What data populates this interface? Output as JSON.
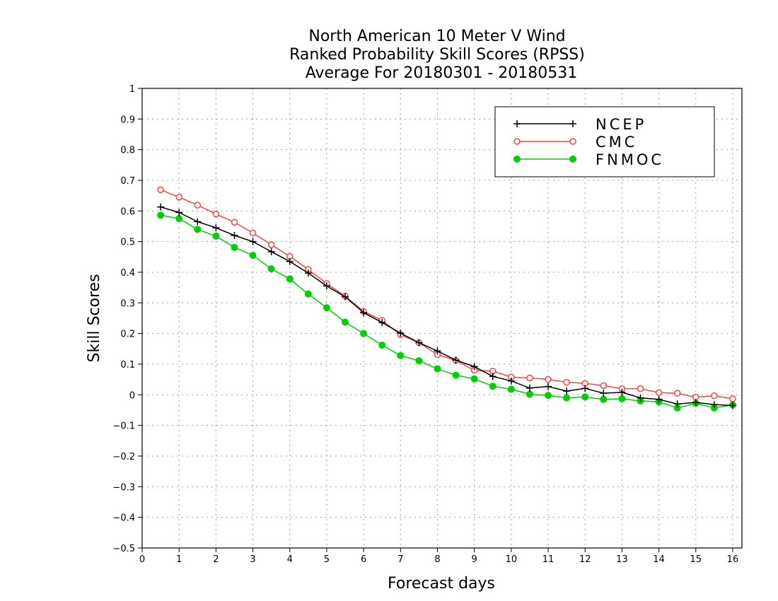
{
  "chart_data": {
    "type": "line",
    "title_lines": [
      "North American 10 Meter V Wind",
      "Ranked Probability Skill Scores (RPSS)",
      "Average For 20180301 - 20180531"
    ],
    "xlabel": "Forecast days",
    "ylabel": "Skill Scores",
    "xlim": [
      0,
      16.25
    ],
    "ylim": [
      -0.5,
      1
    ],
    "x_ticks": [
      0,
      1,
      2,
      3,
      4,
      5,
      6,
      7,
      8,
      9,
      10,
      11,
      12,
      13,
      14,
      15,
      16
    ],
    "y_ticks": [
      -0.5,
      -0.4,
      -0.3,
      -0.2,
      -0.1,
      0,
      0.1,
      0.2,
      0.3,
      0.4,
      0.5,
      0.6,
      0.7,
      0.8,
      0.9,
      1
    ],
    "grid": true,
    "legend_position": "top-right",
    "x": [
      0.5,
      1,
      1.5,
      2,
      2.5,
      3,
      3.5,
      4,
      4.5,
      5,
      5.5,
      6,
      6.5,
      7,
      7.5,
      8,
      8.5,
      9,
      9.5,
      10,
      10.5,
      11,
      11.5,
      12,
      12.5,
      13,
      13.5,
      14,
      14.5,
      15,
      15.5,
      16
    ],
    "series": [
      {
        "name": "NCEP",
        "color": "#000000",
        "marker": "plus",
        "values": [
          0.613,
          0.595,
          0.565,
          0.545,
          0.52,
          0.5,
          0.467,
          0.435,
          0.397,
          0.355,
          0.32,
          0.268,
          0.236,
          0.201,
          0.17,
          0.143,
          0.113,
          0.092,
          0.06,
          0.045,
          0.022,
          0.027,
          0.012,
          0.021,
          0.005,
          0.008,
          -0.01,
          -0.015,
          -0.03,
          -0.025,
          -0.032,
          -0.035
        ]
      },
      {
        "name": "CMC",
        "color": "#ff4040",
        "marker": "open-circle",
        "values": [
          0.669,
          0.645,
          0.619,
          0.59,
          0.563,
          0.528,
          0.49,
          0.452,
          0.409,
          0.363,
          0.322,
          0.272,
          0.243,
          0.196,
          0.17,
          0.131,
          0.112,
          0.08,
          0.077,
          0.058,
          0.055,
          0.05,
          0.041,
          0.037,
          0.03,
          0.02,
          0.02,
          0.007,
          0.005,
          -0.008,
          -0.003,
          -0.013
        ]
      },
      {
        "name": "FNMOC",
        "color": "#00d000",
        "marker": "filled-circle",
        "values": [
          0.586,
          0.575,
          0.54,
          0.518,
          0.481,
          0.455,
          0.411,
          0.378,
          0.329,
          0.284,
          0.237,
          0.2,
          0.162,
          0.128,
          0.111,
          0.085,
          0.064,
          0.052,
          0.028,
          0.018,
          0.002,
          -0.002,
          -0.01,
          -0.007,
          -0.015,
          -0.013,
          -0.02,
          -0.023,
          -0.043,
          -0.028,
          -0.043,
          -0.033
        ]
      }
    ]
  }
}
